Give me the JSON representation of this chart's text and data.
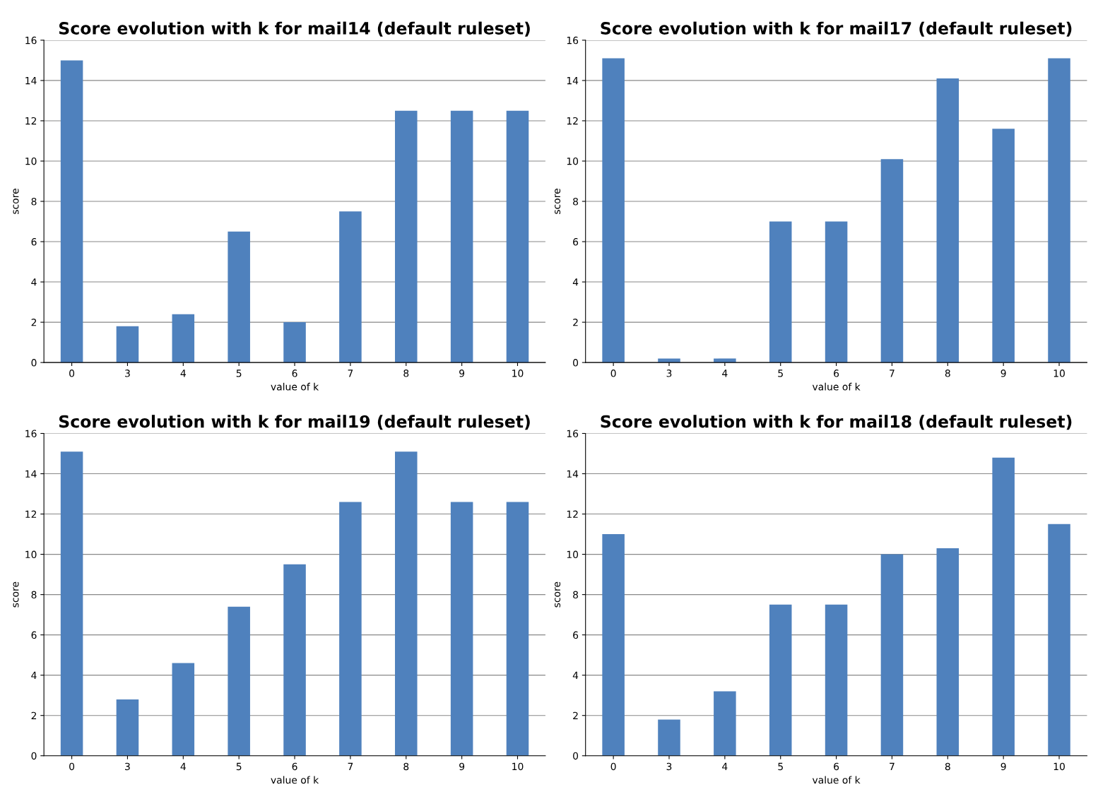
{
  "chart_data": [
    {
      "type": "bar",
      "title": "Score evolution with k for mail14 (default ruleset)",
      "xlabel": "value of k",
      "ylabel": "score",
      "categories": [
        "0",
        "3",
        "4",
        "5",
        "6",
        "7",
        "8",
        "9",
        "10"
      ],
      "values": [
        15,
        1.8,
        2.4,
        6.5,
        2,
        7.5,
        12.5,
        12.5,
        12.5
      ],
      "color": "#4f81bd",
      "ylim": [
        0,
        16
      ],
      "yticks": [
        0,
        2,
        4,
        6,
        8,
        10,
        12,
        14,
        16
      ],
      "grid": "y"
    },
    {
      "type": "bar",
      "title": "Score evolution with k for mail17 (default ruleset)",
      "xlabel": "value of k",
      "ylabel": "score",
      "categories": [
        "0",
        "3",
        "4",
        "5",
        "6",
        "7",
        "8",
        "9",
        "10"
      ],
      "values": [
        15.1,
        0.2,
        0.2,
        7,
        7,
        10.1,
        14.1,
        11.6,
        15.1
      ],
      "color": "#4f81bd",
      "ylim": [
        0,
        16
      ],
      "yticks": [
        0,
        2,
        4,
        6,
        8,
        10,
        12,
        14,
        16
      ],
      "grid": "y"
    },
    {
      "type": "bar",
      "title": "Score evolution with k for mail19 (default ruleset)",
      "xlabel": "value of k",
      "ylabel": "score",
      "categories": [
        "0",
        "3",
        "4",
        "5",
        "6",
        "7",
        "8",
        "9",
        "10"
      ],
      "values": [
        15.1,
        2.8,
        4.6,
        7.4,
        9.5,
        12.6,
        15.1,
        12.6,
        12.6
      ],
      "color": "#4f81bd",
      "ylim": [
        0,
        16
      ],
      "yticks": [
        0,
        2,
        4,
        6,
        8,
        10,
        12,
        14,
        16
      ],
      "grid": "y"
    },
    {
      "type": "bar",
      "title": "Score evolution with k for mail18 (default ruleset)",
      "xlabel": "value of k",
      "ylabel": "score",
      "categories": [
        "0",
        "3",
        "4",
        "5",
        "6",
        "7",
        "8",
        "9",
        "10"
      ],
      "values": [
        11,
        1.8,
        3.2,
        7.5,
        7.5,
        10,
        10.3,
        14.8,
        11.5
      ],
      "color": "#4f81bd",
      "ylim": [
        0,
        16
      ],
      "yticks": [
        0,
        2,
        4,
        6,
        8,
        10,
        12,
        14,
        16
      ],
      "grid": "y"
    }
  ]
}
